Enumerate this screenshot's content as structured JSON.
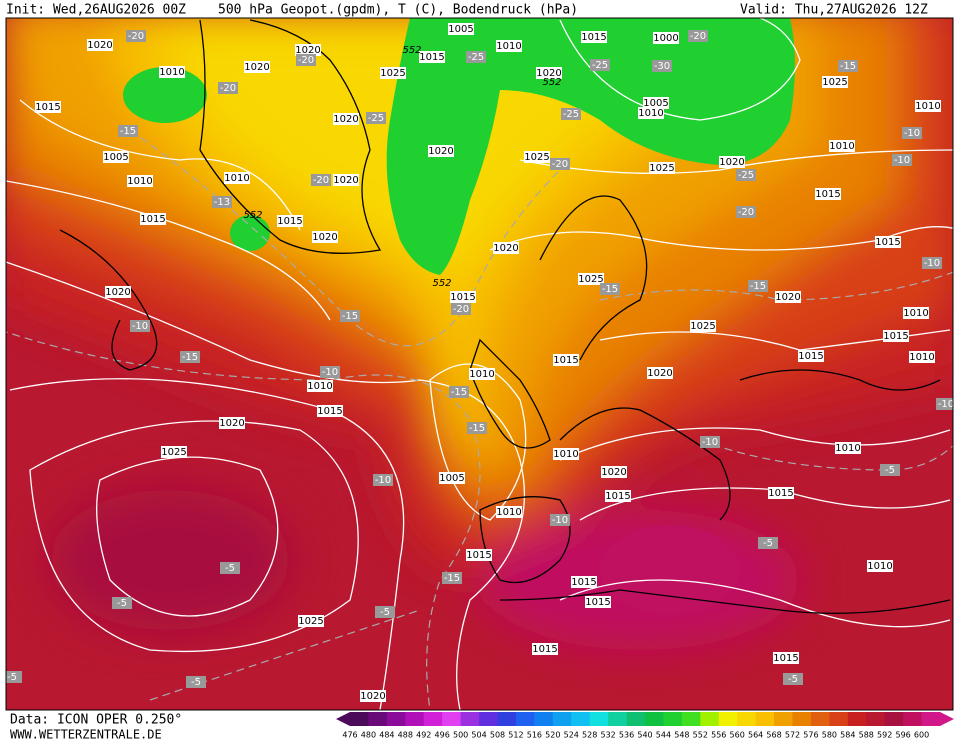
{
  "header": {
    "init": "Init: Wed,26AUG2026 00Z",
    "title": "500 hPa Geopot.(gpdm), T (C), Bodendruck (hPa)",
    "valid": "Valid: Thu,27AUG2026 12Z"
  },
  "footer": {
    "data": "Data: ICON OPER 0.250°",
    "site": "WWW.WETTERZENTRALE.DE"
  },
  "colorbar": {
    "labels": [
      476,
      480,
      484,
      488,
      492,
      496,
      500,
      504,
      508,
      512,
      516,
      520,
      524,
      528,
      532,
      536,
      540,
      544,
      548,
      552,
      556,
      560,
      564,
      568,
      572,
      576,
      580,
      584,
      588,
      592,
      596,
      600
    ],
    "colors": [
      "#4b0a5a",
      "#6a0a7a",
      "#8a0a9a",
      "#b010b8",
      "#d020d8",
      "#e040f0",
      "#9a30e0",
      "#6030e0",
      "#3040e0",
      "#2060f0",
      "#1080f0",
      "#10a0f0",
      "#10c0f0",
      "#10e0e0",
      "#10d0a0",
      "#10c070",
      "#10c040",
      "#20d030",
      "#40e020",
      "#a0f000",
      "#f0f000",
      "#f8d800",
      "#f8c000",
      "#f0a000",
      "#e88000",
      "#e06010",
      "#d84018",
      "#c82020",
      "#b81830",
      "#a81040",
      "#c01060",
      "#d01888"
    ]
  },
  "pressure_labels": [
    "1020",
    "1010",
    "1015",
    "1005",
    "1010",
    "1015",
    "1020",
    "1010",
    "1015",
    "1020",
    "1020",
    "1020",
    "1020",
    "1020",
    "1005",
    "1010",
    "1015",
    "1025",
    "1015",
    "1000",
    "1020",
    "1005",
    "1010",
    "1025",
    "1010",
    "1010",
    "1020",
    "1025",
    "1025",
    "1020",
    "1015",
    "1015",
    "1020",
    "1015",
    "1025",
    "1020",
    "1025",
    "1010",
    "1015",
    "1010",
    "1015",
    "1015",
    "1010",
    "1010",
    "1015",
    "1020",
    "1020",
    "1025",
    "1010",
    "1020",
    "1015",
    "1015",
    "1010",
    "1005",
    "1010",
    "1015",
    "1015",
    "1015",
    "1025",
    "1015",
    "1015",
    "1010",
    "1020"
  ],
  "temp_labels": [
    "-20",
    "-20",
    "-15",
    "-13",
    "-20",
    "-25",
    "-20",
    "-25",
    "-25",
    "-30",
    "-20",
    "-25",
    "-20",
    "-25",
    "-20",
    "-15",
    "-10",
    "-10",
    "-10",
    "-15",
    "-15",
    "-15",
    "-20",
    "-10",
    "-15",
    "-10",
    "-15",
    "-15",
    "-10",
    "-10",
    "-10",
    "-5",
    "-5",
    "-5",
    "-5",
    "-15",
    "-5",
    "-5",
    "-5",
    "-5",
    "-10"
  ],
  "height_labels": [
    "552",
    "552",
    "552",
    "552"
  ]
}
